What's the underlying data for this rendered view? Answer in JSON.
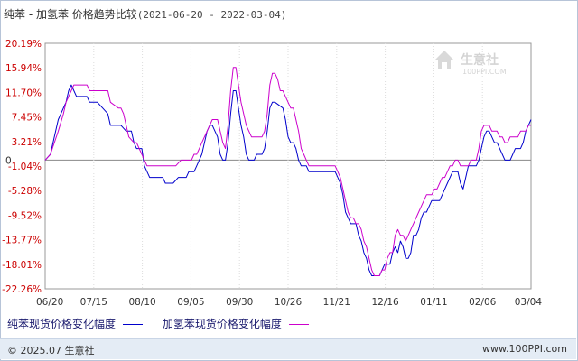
{
  "header": {
    "title": "纯苯 - 加氢苯 价格趋势比较",
    "date_range": "(2021-06-20 - 2022-03-04)"
  },
  "watermark": {
    "brand": "生意社",
    "url": "100PPI.COM"
  },
  "footer": {
    "copyright": "© 2025.07 生意社",
    "site": "www.100PPI.com"
  },
  "colors": {
    "series1": "#0000cc",
    "series2": "#cc00cc",
    "axis_text": "#cc0000",
    "grid": "#dddddd"
  },
  "chart_data": {
    "type": "line",
    "title": "纯苯 - 加氢苯 价格趋势比较",
    "ylim": [
      -22.26,
      20.19
    ],
    "yticks": [
      "20.19%",
      "15.94%",
      "11.70%",
      "7.45%",
      "3.21%",
      "-1.04%",
      "-5.28%",
      "-9.52%",
      "-13.77%",
      "-18.01%",
      "-22.26%"
    ],
    "zero_label": "0",
    "xticks": [
      "06/20",
      "07/15",
      "08/10",
      "09/05",
      "09/30",
      "10/26",
      "11/21",
      "12/16",
      "01/11",
      "02/06",
      "03/04"
    ],
    "grid": "vertical dotted lines at ticks, solid zero line",
    "legend_position": "bottom",
    "series": [
      {
        "name": "纯苯现货价格变化幅度",
        "color": "#0000cc",
        "points": [
          [
            0,
            0
          ],
          [
            2,
            1
          ],
          [
            5,
            7
          ],
          [
            8,
            10
          ],
          [
            9,
            12
          ],
          [
            10,
            13
          ],
          [
            11,
            12
          ],
          [
            12,
            11
          ],
          [
            16,
            11
          ],
          [
            17,
            10
          ],
          [
            20,
            10
          ],
          [
            22,
            9
          ],
          [
            24,
            8
          ],
          [
            25,
            6
          ],
          [
            29,
            6
          ],
          [
            31,
            5
          ],
          [
            33,
            5
          ],
          [
            34,
            3
          ],
          [
            35,
            2
          ],
          [
            37,
            2
          ],
          [
            38,
            -1
          ],
          [
            39,
            -2
          ],
          [
            40,
            -3
          ],
          [
            45,
            -3
          ],
          [
            46,
            -4
          ],
          [
            49,
            -4
          ],
          [
            51,
            -3
          ],
          [
            54,
            -3
          ],
          [
            55,
            -2
          ],
          [
            57,
            -2
          ],
          [
            58,
            -1
          ],
          [
            60,
            1
          ],
          [
            61,
            3
          ],
          [
            62,
            5
          ],
          [
            63,
            6
          ],
          [
            64,
            6
          ],
          [
            65,
            5
          ],
          [
            66,
            4
          ],
          [
            67,
            1
          ],
          [
            68,
            0
          ],
          [
            69,
            0
          ],
          [
            70,
            3
          ],
          [
            71,
            8
          ],
          [
            72,
            12
          ],
          [
            73,
            12
          ],
          [
            74,
            9
          ],
          [
            75,
            6
          ],
          [
            76,
            4
          ],
          [
            77,
            1
          ],
          [
            78,
            0
          ],
          [
            79,
            0
          ],
          [
            80,
            0
          ],
          [
            81,
            1
          ],
          [
            83,
            1
          ],
          [
            84,
            2
          ],
          [
            85,
            5
          ],
          [
            86,
            9
          ],
          [
            87,
            10
          ],
          [
            88,
            10
          ],
          [
            91,
            9
          ],
          [
            92,
            7
          ],
          [
            93,
            4
          ],
          [
            94,
            3
          ],
          [
            95,
            3
          ],
          [
            96,
            2
          ],
          [
            97,
            0
          ],
          [
            98,
            -1
          ],
          [
            100,
            -1
          ],
          [
            101,
            -2
          ],
          [
            102,
            -2
          ],
          [
            104,
            -2
          ],
          [
            111,
            -2
          ],
          [
            112,
            -3
          ],
          [
            113,
            -4
          ],
          [
            114,
            -6
          ],
          [
            115,
            -9
          ],
          [
            116,
            -10
          ],
          [
            117,
            -11
          ],
          [
            119,
            -11
          ],
          [
            120,
            -13
          ],
          [
            121,
            -14
          ],
          [
            122,
            -16
          ],
          [
            123,
            -17
          ],
          [
            124,
            -19
          ],
          [
            125,
            -20
          ],
          [
            128,
            -20
          ],
          [
            129,
            -19
          ],
          [
            130,
            -18
          ],
          [
            132,
            -18
          ],
          [
            133,
            -16
          ],
          [
            134,
            -15
          ],
          [
            135,
            -16
          ],
          [
            136,
            -14
          ],
          [
            137,
            -15
          ],
          [
            138,
            -17
          ],
          [
            139,
            -17
          ],
          [
            140,
            -16
          ],
          [
            141,
            -13
          ],
          [
            142,
            -13
          ],
          [
            143,
            -12
          ],
          [
            144,
            -10
          ],
          [
            145,
            -9
          ],
          [
            146,
            -9
          ],
          [
            147,
            -8
          ],
          [
            148,
            -7
          ],
          [
            151,
            -7
          ],
          [
            152,
            -6
          ],
          [
            153,
            -5
          ],
          [
            154,
            -4
          ],
          [
            155,
            -3
          ],
          [
            156,
            -2
          ],
          [
            158,
            -2
          ],
          [
            159,
            -4
          ],
          [
            160,
            -5
          ],
          [
            161,
            -3
          ],
          [
            162,
            -1
          ],
          [
            163,
            -1
          ],
          [
            165,
            -1
          ],
          [
            166,
            0
          ],
          [
            167,
            2
          ],
          [
            168,
            4
          ],
          [
            169,
            5
          ],
          [
            170,
            5
          ],
          [
            171,
            4
          ],
          [
            172,
            3
          ],
          [
            173,
            3
          ],
          [
            174,
            2
          ],
          [
            175,
            1
          ],
          [
            176,
            0
          ],
          [
            177,
            0
          ],
          [
            178,
            0
          ],
          [
            179,
            1
          ],
          [
            180,
            2
          ],
          [
            181,
            2
          ],
          [
            182,
            2
          ],
          [
            183,
            3
          ],
          [
            184,
            5
          ],
          [
            185,
            6
          ],
          [
            186,
            7
          ]
        ]
      },
      {
        "name": "加氢苯现货价格变化幅度",
        "color": "#cc00cc",
        "points": [
          [
            0,
            0
          ],
          [
            2,
            1
          ],
          [
            5,
            5
          ],
          [
            7,
            8
          ],
          [
            8,
            10
          ],
          [
            9,
            11
          ],
          [
            10,
            12
          ],
          [
            11,
            13
          ],
          [
            16,
            13
          ],
          [
            17,
            12
          ],
          [
            20,
            12
          ],
          [
            24,
            12
          ],
          [
            25,
            10
          ],
          [
            28,
            9
          ],
          [
            29,
            9
          ],
          [
            30,
            8
          ],
          [
            31,
            6
          ],
          [
            32,
            4
          ],
          [
            34,
            3
          ],
          [
            35,
            3
          ],
          [
            36,
            2
          ],
          [
            37,
            1
          ],
          [
            38,
            0
          ],
          [
            39,
            -1
          ],
          [
            44,
            -1
          ],
          [
            45,
            -1
          ],
          [
            48,
            -1
          ],
          [
            50,
            -1
          ],
          [
            52,
            0
          ],
          [
            54,
            0
          ],
          [
            55,
            0
          ],
          [
            56,
            0
          ],
          [
            57,
            1
          ],
          [
            58,
            1
          ],
          [
            59,
            2
          ],
          [
            60,
            3
          ],
          [
            61,
            4
          ],
          [
            62,
            5
          ],
          [
            63,
            6
          ],
          [
            64,
            7
          ],
          [
            66,
            7
          ],
          [
            67,
            5
          ],
          [
            68,
            3
          ],
          [
            69,
            2
          ],
          [
            70,
            6
          ],
          [
            71,
            12
          ],
          [
            72,
            16
          ],
          [
            73,
            16
          ],
          [
            74,
            13
          ],
          [
            75,
            10
          ],
          [
            76,
            8
          ],
          [
            77,
            6
          ],
          [
            78,
            5
          ],
          [
            79,
            4
          ],
          [
            83,
            4
          ],
          [
            84,
            5
          ],
          [
            85,
            8
          ],
          [
            86,
            13
          ],
          [
            87,
            15
          ],
          [
            88,
            15
          ],
          [
            89,
            14
          ],
          [
            90,
            12
          ],
          [
            91,
            12
          ],
          [
            92,
            11
          ],
          [
            93,
            10
          ],
          [
            94,
            9
          ],
          [
            95,
            9
          ],
          [
            96,
            7
          ],
          [
            97,
            5
          ],
          [
            98,
            2
          ],
          [
            99,
            1
          ],
          [
            100,
            0
          ],
          [
            101,
            -1
          ],
          [
            102,
            -1
          ],
          [
            110,
            -1
          ],
          [
            111,
            -1
          ],
          [
            112,
            -2
          ],
          [
            113,
            -3
          ],
          [
            114,
            -5
          ],
          [
            115,
            -7
          ],
          [
            116,
            -9
          ],
          [
            117,
            -10
          ],
          [
            118,
            -10
          ],
          [
            119,
            -11
          ],
          [
            120,
            -11
          ],
          [
            121,
            -12
          ],
          [
            122,
            -14
          ],
          [
            123,
            -15
          ],
          [
            124,
            -17
          ],
          [
            125,
            -19
          ],
          [
            126,
            -20
          ],
          [
            128,
            -20
          ],
          [
            129,
            -19
          ],
          [
            130,
            -19
          ],
          [
            131,
            -17
          ],
          [
            132,
            -16
          ],
          [
            133,
            -16
          ],
          [
            134,
            -13
          ],
          [
            135,
            -12
          ],
          [
            136,
            -13
          ],
          [
            137,
            -13
          ],
          [
            138,
            -14
          ],
          [
            139,
            -13
          ],
          [
            140,
            -12
          ],
          [
            141,
            -11
          ],
          [
            142,
            -10
          ],
          [
            143,
            -9
          ],
          [
            144,
            -8
          ],
          [
            145,
            -7
          ],
          [
            146,
            -6
          ],
          [
            147,
            -6
          ],
          [
            148,
            -6
          ],
          [
            149,
            -5
          ],
          [
            150,
            -5
          ],
          [
            151,
            -4
          ],
          [
            152,
            -3
          ],
          [
            153,
            -3
          ],
          [
            154,
            -2
          ],
          [
            155,
            -1
          ],
          [
            156,
            -1
          ],
          [
            157,
            0
          ],
          [
            158,
            0
          ],
          [
            159,
            -1
          ],
          [
            160,
            -1
          ],
          [
            161,
            -1
          ],
          [
            162,
            -1
          ],
          [
            163,
            0
          ],
          [
            164,
            0
          ],
          [
            165,
            0
          ],
          [
            166,
            2
          ],
          [
            167,
            5
          ],
          [
            168,
            6
          ],
          [
            169,
            6
          ],
          [
            170,
            6
          ],
          [
            171,
            5
          ],
          [
            172,
            5
          ],
          [
            173,
            5
          ],
          [
            174,
            4
          ],
          [
            175,
            4
          ],
          [
            176,
            3
          ],
          [
            177,
            3
          ],
          [
            178,
            4
          ],
          [
            179,
            4
          ],
          [
            180,
            4
          ],
          [
            181,
            4
          ],
          [
            182,
            5
          ],
          [
            183,
            5
          ],
          [
            184,
            5
          ],
          [
            185,
            6
          ],
          [
            186,
            6
          ]
        ]
      }
    ]
  }
}
